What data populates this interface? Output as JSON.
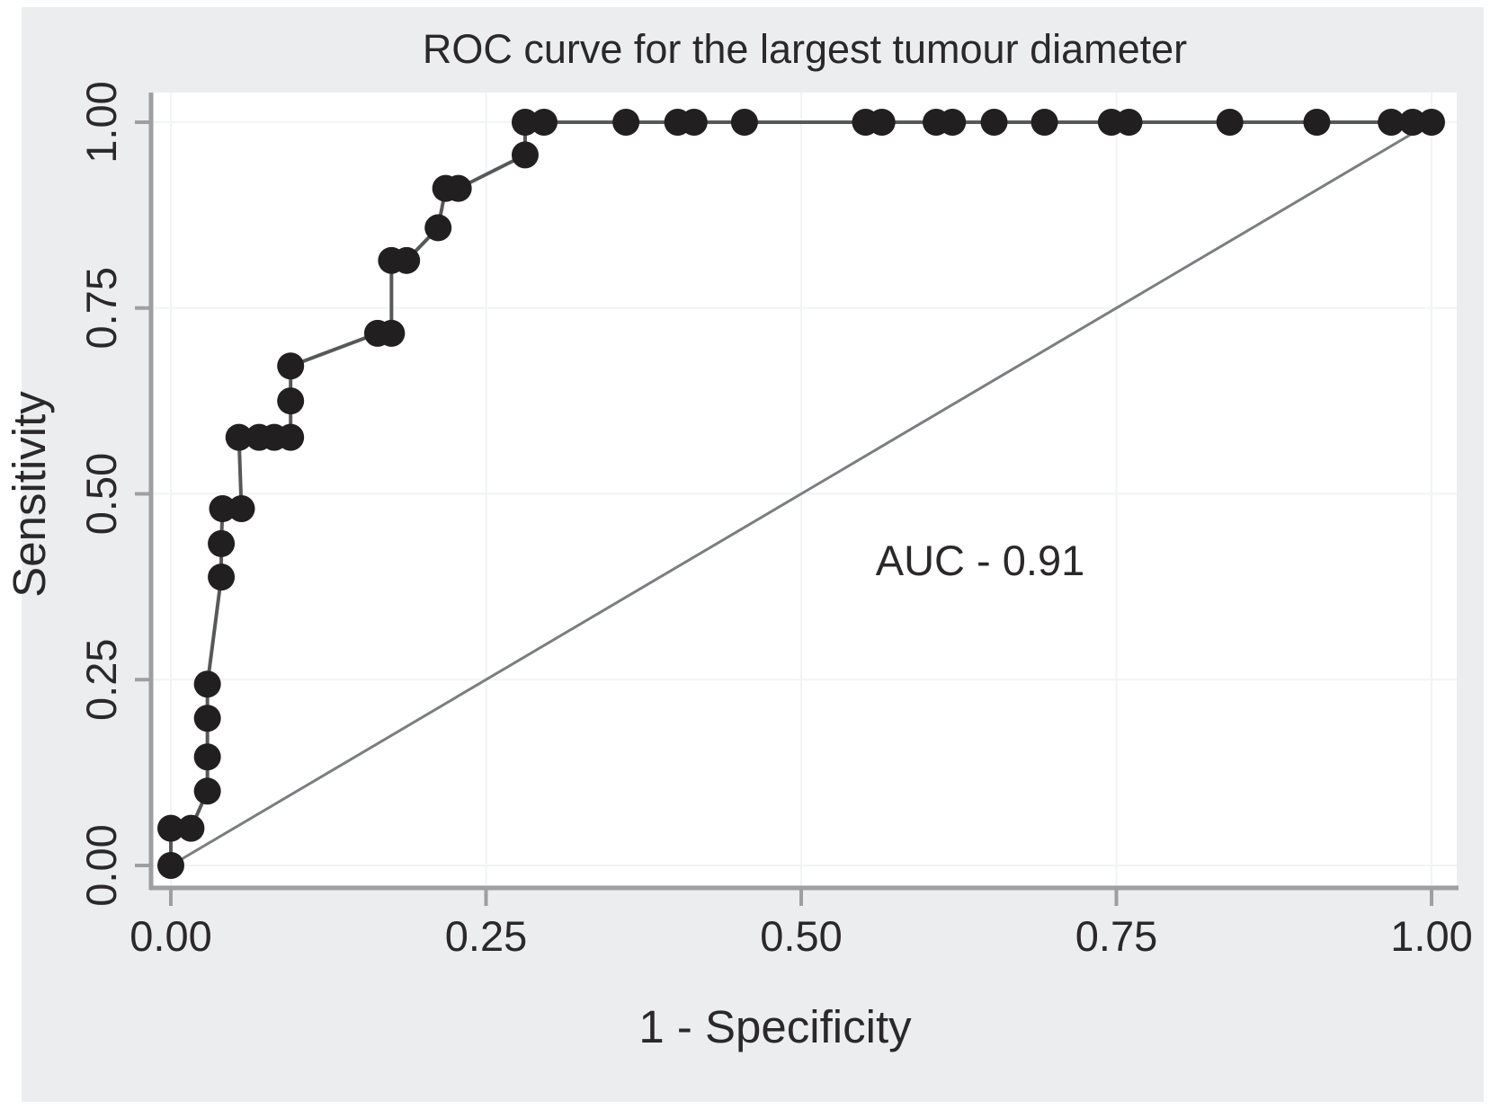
{
  "chart_data": {
    "type": "line",
    "title": "ROC curve for the largest tumour diameter",
    "xlabel": "1 - Specificity",
    "ylabel": "Sensitivity",
    "xlim": [
      0,
      1
    ],
    "ylim": [
      0,
      1
    ],
    "grid": true,
    "legend": "none",
    "x_tick_values": [
      0,
      0.25,
      0.5,
      0.75,
      1
    ],
    "x_tick_labels": [
      "0.00",
      "0.25",
      "0.50",
      "0.75",
      "1.00"
    ],
    "y_tick_values": [
      0,
      0.25,
      0.5,
      0.75,
      1
    ],
    "y_tick_labels": [
      "0.00",
      "0.25",
      "0.50",
      "0.75",
      "1.00"
    ],
    "auc": 0.91,
    "annotations": [
      {
        "text": "AUC - 0.91",
        "x": 0.642,
        "y": 0.409
      }
    ],
    "series": [
      {
        "name": "ROC curve",
        "marker": "filled-circle",
        "points": [
          [
            0.0,
            0.0
          ],
          [
            0.0,
            0.05
          ],
          [
            0.016,
            0.05
          ],
          [
            0.029,
            0.1
          ],
          [
            0.029,
            0.146
          ],
          [
            0.029,
            0.198
          ],
          [
            0.029,
            0.244
          ],
          [
            0.04,
            0.388
          ],
          [
            0.04,
            0.433
          ],
          [
            0.041,
            0.48
          ],
          [
            0.056,
            0.48
          ],
          [
            0.054,
            0.576
          ],
          [
            0.07,
            0.576
          ],
          [
            0.082,
            0.576
          ],
          [
            0.095,
            0.576
          ],
          [
            0.095,
            0.625
          ],
          [
            0.095,
            0.672
          ],
          [
            0.164,
            0.716
          ],
          [
            0.175,
            0.716
          ],
          [
            0.175,
            0.814
          ],
          [
            0.187,
            0.814
          ],
          [
            0.212,
            0.858
          ],
          [
            0.218,
            0.911
          ],
          [
            0.228,
            0.911
          ],
          [
            0.281,
            0.956
          ],
          [
            0.281,
            1.0
          ],
          [
            0.296,
            1.0
          ],
          [
            0.361,
            1.0
          ],
          [
            0.402,
            1.0
          ],
          [
            0.415,
            1.0
          ],
          [
            0.455,
            1.0
          ],
          [
            0.551,
            1.0
          ],
          [
            0.564,
            1.0
          ],
          [
            0.607,
            1.0
          ],
          [
            0.62,
            1.0
          ],
          [
            0.653,
            1.0
          ],
          [
            0.693,
            1.0
          ],
          [
            0.746,
            1.0
          ],
          [
            0.76,
            1.0
          ],
          [
            0.84,
            1.0
          ],
          [
            0.909,
            1.0
          ],
          [
            0.968,
            1.0
          ],
          [
            0.985,
            1.0
          ],
          [
            1.0,
            1.0
          ]
        ]
      },
      {
        "name": "Reference diagonal",
        "marker": "none",
        "points": [
          [
            0,
            0
          ],
          [
            1,
            1
          ]
        ]
      }
    ]
  },
  "style": {
    "figure_background": "#ecedef",
    "panel_background": "#ffffff",
    "grid_color": "#f2f3f3",
    "axis_color": "#9d9fa2",
    "text_color": "#2b2829",
    "dot_color": "#221f20",
    "curve_color": "#57585a",
    "diagonal_color": "#7b7d80"
  }
}
